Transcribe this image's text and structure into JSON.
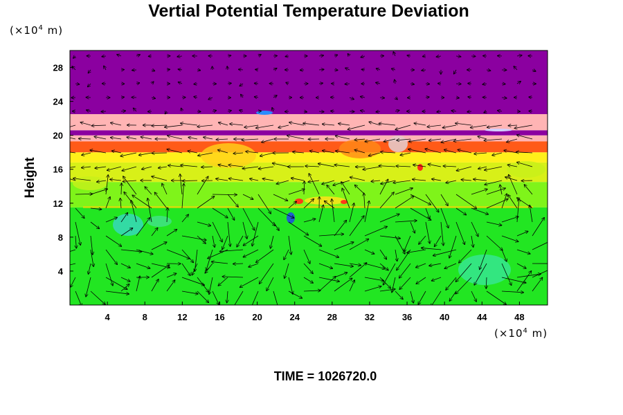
{
  "chart_data": {
    "type": "heatmap",
    "title": "Vertial Potential Temperature Deviation",
    "ylabel": "Height",
    "xlabel": "",
    "x_unit": {
      "prefix": "(×10",
      "exponent": "4",
      "suffix": " m)"
    },
    "y_unit": {
      "prefix": "(×10",
      "exponent": "4",
      "suffix": " m)"
    },
    "xlim": [
      0,
      51
    ],
    "ylim": [
      0,
      30
    ],
    "x_ticks": [
      "4",
      "8",
      "12",
      "16",
      "20",
      "24",
      "28",
      "32",
      "36",
      "40",
      "44",
      "48"
    ],
    "y_ticks": [
      "4",
      "8",
      "12",
      "16",
      "20",
      "24",
      "28"
    ],
    "x_tick_values": [
      4,
      8,
      12,
      16,
      20,
      24,
      28,
      32,
      36,
      40,
      44,
      48
    ],
    "y_tick_values": [
      4,
      8,
      12,
      16,
      20,
      24,
      28
    ],
    "overlay": "wind vector arrows",
    "bands": [
      {
        "from": 0,
        "to": 11.5,
        "color": "#22e622"
      },
      {
        "from": 11.5,
        "to": 14.5,
        "color": "#7ff41a"
      },
      {
        "from": 14.5,
        "to": 16.8,
        "color": "#d8f018"
      },
      {
        "from": 16.8,
        "to": 18.0,
        "color": "#fff01a"
      },
      {
        "from": 18.0,
        "to": 19.3,
        "color": "#ff5a18"
      },
      {
        "from": 19.3,
        "to": 20.0,
        "color": "#ffb4b4"
      },
      {
        "from": 20.0,
        "to": 20.6,
        "color": "#8b00a0"
      },
      {
        "from": 20.6,
        "to": 22.5,
        "color": "#ffb4b4"
      },
      {
        "from": 22.5,
        "to": 30,
        "color": "#8b00a0"
      }
    ],
    "grid": false
  },
  "footer": {
    "time_label": "TIME = 1026720.0"
  }
}
